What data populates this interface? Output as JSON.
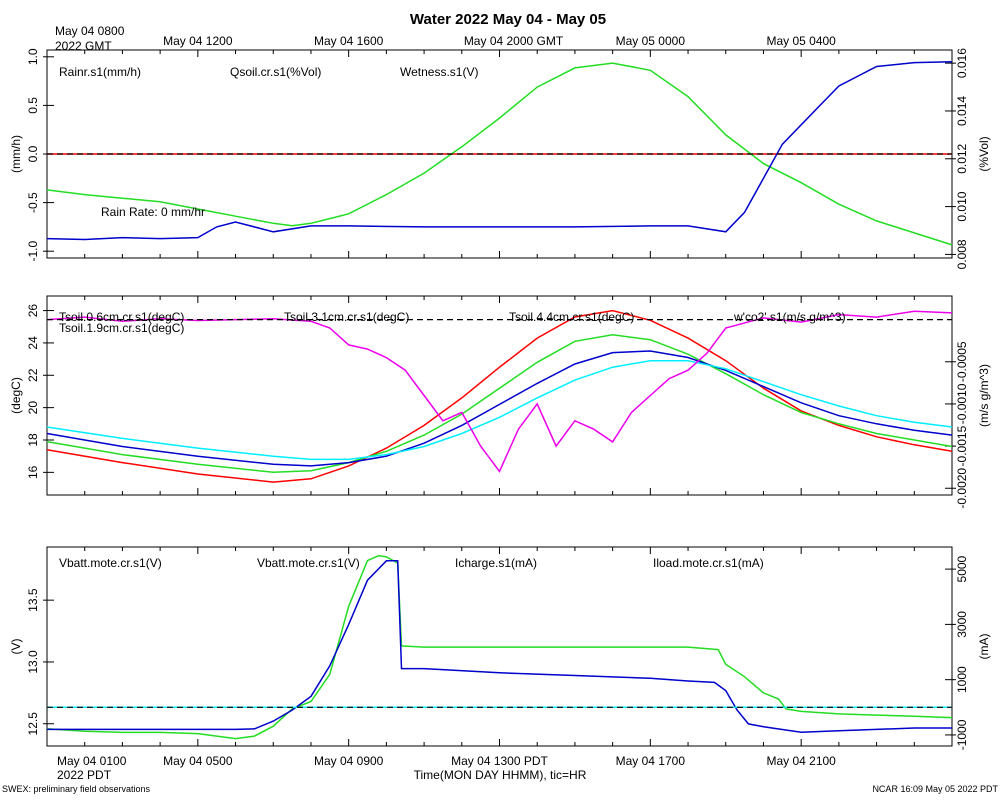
{
  "title": "Water 2022 May 04 - May 05",
  "top_time_label": [
    "May 04 0800",
    "2022 GMT"
  ],
  "top_ticks": [
    "May 04 1200",
    "May 04 1600",
    "May 04 2000 GMT",
    "May 05 0000",
    "May 05 0400"
  ],
  "bottom_time_label": [
    "May 04 0100",
    "2022 PDT"
  ],
  "bottom_ticks": [
    "May 04 0500",
    "May 04 0900",
    "May 04 1300 PDT",
    "May 04 1700",
    "May 04 2100"
  ],
  "xlabel": "Time(MON DAY HHMM), tic=HR",
  "footer_left": "SWEX: preliminary field observations",
  "footer_right": "NCAR 16:09 May 05 2022 PDT",
  "colors": {
    "red": "#ff0000",
    "green": "#22dd22",
    "blue": "#0000cc",
    "cyan": "#00eeff",
    "magenta": "#ee00ee"
  },
  "chart_data": [
    {
      "type": "line",
      "name": "rain-wetness-panel",
      "x_unit": "hours since May 04 0100 PDT",
      "xlim": [
        0,
        24
      ],
      "left_axis": {
        "label": "(mm/h)",
        "ylim": [
          -1.07,
          1.07
        ],
        "ticks": [
          "1.0",
          "0.5",
          "0.0",
          "-0.5",
          "-1.0"
        ]
      },
      "right_axis": {
        "label": "(%Vol)",
        "ylim": [
          0.00785,
          0.01655
        ],
        "ticks": [
          "0.016",
          "0.014",
          "0.012",
          "0.010",
          "0.008"
        ]
      },
      "reference_line": 0.0,
      "annotation": "Rain Rate: 0 mm/hr",
      "legend": [
        "Rainr.s1(mm/h)",
        "Qsoil.cr.s1(%Vol)",
        "Wetness.s1(V)"
      ],
      "series": [
        {
          "name": "Rainr.s1(mm/h)",
          "axis": "left",
          "color": "red",
          "x": [
            0,
            24
          ],
          "y": [
            0,
            0
          ]
        },
        {
          "name": "Qsoil.cr.s1(%Vol)",
          "axis": "right",
          "color": "green",
          "x": [
            0,
            1,
            2,
            3,
            4,
            5,
            6,
            6.5,
            7,
            7.5,
            8,
            9,
            10,
            11,
            12,
            13,
            14,
            15,
            16,
            17,
            18,
            19,
            20,
            21,
            22,
            23,
            24
          ],
          "y": [
            0.0107,
            0.0105,
            0.01035,
            0.0102,
            0.0099,
            0.0096,
            0.0093,
            0.0092,
            0.0093,
            0.0095,
            0.0097,
            0.0105,
            0.0114,
            0.0125,
            0.0137,
            0.015,
            0.0158,
            0.016,
            0.0157,
            0.0146,
            0.013,
            0.0118,
            0.011,
            0.0101,
            0.0094,
            0.0089,
            0.0084
          ]
        },
        {
          "name": "Wetness.s1(V)",
          "axis": "left",
          "color": "blue",
          "x": [
            0,
            1,
            2,
            3,
            4,
            4.5,
            5,
            6,
            7,
            8,
            10,
            12,
            14,
            16,
            17,
            18,
            18.5,
            19,
            19.5,
            20,
            20.5,
            21,
            22,
            23,
            24
          ],
          "y": [
            -0.87,
            -0.88,
            -0.86,
            -0.87,
            -0.86,
            -0.75,
            -0.7,
            -0.8,
            -0.74,
            -0.74,
            -0.75,
            -0.75,
            -0.75,
            -0.74,
            -0.74,
            -0.8,
            -0.6,
            -0.25,
            0.1,
            0.3,
            0.5,
            0.7,
            0.9,
            0.94,
            0.95
          ]
        }
      ]
    },
    {
      "type": "line",
      "name": "soil-temperature-panel",
      "x_unit": "hours since May 04 0100 PDT",
      "xlim": [
        0,
        24
      ],
      "left_axis": {
        "label": "(degC)",
        "ylim": [
          14.6,
          26.9
        ],
        "ticks": [
          "26",
          "24",
          "22",
          "20",
          "18",
          "16"
        ]
      },
      "right_axis": {
        "label": "(m/s g/m^3)",
        "ylim": [
          -0.00208,
          0.00028
        ],
        "ticks": [
          "-0.0005",
          "-0.0010",
          "-0.0015",
          "-0.0020"
        ]
      },
      "reference_line_right": 0.0,
      "legend": [
        "Tsoil.0.6cm.cr.s1(degC)",
        "Tsoil.1.9cm.cr.s1(degC)",
        "Tsoil.3.1cm.cr.s1(degC)",
        "Tsoil.4.4cm.cr.s1(degC)",
        "w'co2'.s1(m/s g/m^3)"
      ],
      "series": [
        {
          "name": "Tsoil.0.6cm.cr.s1(degC)",
          "axis": "left",
          "color": "red",
          "x": [
            0,
            2,
            4,
            6,
            7,
            8,
            9,
            10,
            11,
            12,
            13,
            14,
            15,
            16,
            17,
            18,
            19,
            20,
            21,
            22,
            23,
            24
          ],
          "y": [
            17.4,
            16.6,
            15.9,
            15.4,
            15.6,
            16.4,
            17.5,
            18.9,
            20.6,
            22.5,
            24.3,
            25.6,
            26.0,
            25.4,
            24.3,
            22.9,
            21.2,
            19.8,
            18.9,
            18.2,
            17.7,
            17.3
          ]
        },
        {
          "name": "Tsoil.1.9cm.cr.s1(degC)",
          "axis": "left",
          "color": "green",
          "x": [
            0,
            2,
            4,
            6,
            7,
            8,
            9,
            10,
            11,
            12,
            13,
            14,
            15,
            16,
            17,
            18,
            19,
            20,
            21,
            22,
            23,
            24
          ],
          "y": [
            17.9,
            17.1,
            16.5,
            16.0,
            16.1,
            16.6,
            17.3,
            18.3,
            19.6,
            21.2,
            22.8,
            24.1,
            24.5,
            24.2,
            23.3,
            22.1,
            20.8,
            19.7,
            19.0,
            18.4,
            18.0,
            17.6
          ]
        },
        {
          "name": "Tsoil.3.1cm.cr.s1(degC)",
          "axis": "left",
          "color": "blue",
          "x": [
            0,
            2,
            4,
            6,
            7,
            8,
            9,
            10,
            11,
            12,
            13,
            14,
            15,
            16,
            17,
            18,
            19,
            20,
            21,
            22,
            23,
            24
          ],
          "y": [
            18.4,
            17.6,
            17.0,
            16.5,
            16.4,
            16.6,
            17.0,
            17.8,
            18.9,
            20.2,
            21.5,
            22.7,
            23.4,
            23.5,
            23.1,
            22.3,
            21.3,
            20.3,
            19.5,
            19.0,
            18.6,
            18.3
          ]
        },
        {
          "name": "Tsoil.4.4cm.cr.s1(degC)",
          "axis": "left",
          "color": "cyan",
          "x": [
            0,
            2,
            4,
            6,
            7,
            8,
            9,
            10,
            11,
            12,
            13,
            14,
            15,
            16,
            17,
            18,
            19,
            20,
            21,
            22,
            23,
            24
          ],
          "y": [
            18.8,
            18.1,
            17.5,
            17.0,
            16.8,
            16.8,
            17.1,
            17.6,
            18.4,
            19.4,
            20.6,
            21.7,
            22.5,
            22.9,
            22.9,
            22.4,
            21.6,
            20.8,
            20.1,
            19.5,
            19.1,
            18.8
          ]
        },
        {
          "name": "w'co2'.s1(m/s g/m^3)",
          "axis": "right",
          "color": "magenta",
          "x": [
            0,
            1,
            2,
            3,
            4,
            5,
            6,
            7,
            7.5,
            8,
            8.5,
            9,
            9.5,
            10,
            10.5,
            11,
            11.5,
            12,
            12.5,
            13,
            13.5,
            14,
            14.5,
            15,
            15.5,
            16,
            16.5,
            17,
            17.5,
            18,
            19,
            20,
            21,
            22,
            23,
            24
          ],
          "y": [
            0.0,
            3e-05,
            -2e-05,
            1e-05,
            -1e-05,
            0.0,
            1e-05,
            -2e-05,
            -0.0001,
            -0.0003,
            -0.00035,
            -0.00045,
            -0.0006,
            -0.0009,
            -0.0012,
            -0.0011,
            -0.0015,
            -0.0018,
            -0.0013,
            -0.001,
            -0.0015,
            -0.0012,
            -0.0013,
            -0.00145,
            -0.0011,
            -0.0009,
            -0.0007,
            -0.0006,
            -0.0004,
            -0.0001,
            2e-05,
            -3e-05,
            6e-05,
            3e-05,
            0.0001,
            8e-05
          ]
        }
      ]
    },
    {
      "type": "line",
      "name": "battery-current-panel",
      "x_unit": "hours since May 04 0100 PDT",
      "xlim": [
        0,
        24
      ],
      "left_axis": {
        "label": "(V)",
        "ylim": [
          12.32,
          13.93
        ],
        "ticks": [
          "13.5",
          "13.0",
          "12.5"
        ]
      },
      "right_axis": {
        "label": "(mA)",
        "ylim": [
          -1400,
          5800
        ],
        "ticks": [
          "5000",
          "3000",
          "1000",
          "-1000"
        ]
      },
      "reference_line_right": 0,
      "legend": [
        "Vbatt.mote.cr.s1(V)",
        "Vbatt.mote.cr.s1(V)",
        "Icharge.s1(mA)",
        "Iload.mote.cr.s1(mA)"
      ],
      "series": [
        {
          "name": "Vbatt.mote.cr.s1(V) red",
          "axis": "left",
          "color": "red",
          "x": [],
          "y": []
        },
        {
          "name": "Vbatt.mote.cr.s1(V)",
          "axis": "left",
          "color": "green",
          "x": [
            0,
            1,
            2,
            3,
            4,
            5,
            5.5,
            6,
            6.5,
            7,
            7.5,
            8,
            8.5,
            8.8,
            9,
            9.3,
            9.4,
            10,
            12,
            14,
            16,
            17,
            17.8,
            18,
            18.5,
            19,
            19.4,
            19.6,
            20,
            21,
            22,
            23,
            24
          ],
          "y": [
            12.46,
            12.44,
            12.43,
            12.43,
            12.42,
            12.38,
            12.4,
            12.48,
            12.62,
            12.68,
            12.9,
            13.45,
            13.82,
            13.86,
            13.85,
            13.8,
            13.13,
            13.12,
            13.12,
            13.12,
            13.12,
            13.12,
            13.1,
            12.98,
            12.88,
            12.75,
            12.7,
            12.62,
            12.6,
            12.58,
            12.57,
            12.56,
            12.55
          ]
        },
        {
          "name": "Icharge.s1(mA)",
          "axis": "right",
          "color": "blue",
          "x": [
            0,
            2,
            4,
            5,
            5.5,
            6,
            6.5,
            7,
            7.5,
            8,
            8.5,
            9,
            9.3,
            9.4,
            10,
            12,
            14,
            16,
            17,
            17.7,
            18,
            18.3,
            18.6,
            19,
            20,
            21,
            22,
            23,
            24
          ],
          "y": [
            -800,
            -800,
            -800,
            -800,
            -780,
            -500,
            -100,
            400,
            1500,
            3000,
            4600,
            5300,
            5300,
            1400,
            1400,
            1250,
            1150,
            1050,
            950,
            900,
            600,
            -100,
            -600,
            -700,
            -900,
            -850,
            -800,
            -750,
            -750
          ]
        },
        {
          "name": "Iload.mote.cr.s1(mA)",
          "axis": "right",
          "color": "cyan",
          "x": [
            0,
            24
          ],
          "y": [
            0,
            0
          ]
        }
      ]
    }
  ]
}
